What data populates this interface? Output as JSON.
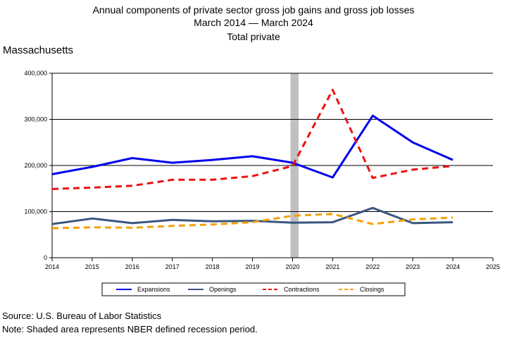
{
  "title_lines": [
    "Annual components of private sector gross job gains and gross job losses",
    "March 2014 — March 2024",
    "Total private"
  ],
  "state": "Massachusetts",
  "footer": {
    "source": "Source: U.S. Bureau of Labor Statistics",
    "note": "Note: Shaded area represents NBER defined recession period."
  },
  "chart_data": {
    "type": "line",
    "x": [
      2014,
      2015,
      2016,
      2017,
      2018,
      2019,
      2020,
      2021,
      2022,
      2023,
      2024
    ],
    "xlim": [
      2014,
      2025
    ],
    "x_ticks": [
      "2014",
      "2015",
      "2016",
      "2017",
      "2018",
      "2019",
      "2020",
      "2021",
      "2022",
      "2023",
      "2024",
      "2025"
    ],
    "ylim": [
      0,
      400000
    ],
    "y_ticks": [
      "0",
      "100,000",
      "200,000",
      "300,000",
      "400,000"
    ],
    "y_tick_values": [
      0,
      100000,
      200000,
      300000,
      400000
    ],
    "grid": "horizontal",
    "legend_position": "bottom",
    "recession_shading": {
      "start": 2020,
      "end": 2020.15,
      "color": "#c0c0c0"
    },
    "series": [
      {
        "name": "Expansions",
        "color": "#0000ee",
        "style": "solid",
        "values": [
          181000,
          197000,
          216000,
          206000,
          212000,
          220000,
          206000,
          174000,
          308000,
          250000,
          212000
        ]
      },
      {
        "name": "Openings",
        "color": "#3a5580",
        "style": "solid",
        "values": [
          73000,
          85000,
          75000,
          82000,
          79000,
          80000,
          76000,
          77000,
          108000,
          75000,
          77000
        ]
      },
      {
        "name": "Contractions",
        "color": "#ee1111",
        "style": "dashed",
        "values": [
          149000,
          152000,
          156000,
          169000,
          169000,
          177000,
          199000,
          364000,
          173000,
          191000,
          199000
        ]
      },
      {
        "name": "Closings",
        "color": "#f5a000",
        "style": "dashed",
        "values": [
          64000,
          66000,
          65000,
          69000,
          72000,
          77000,
          91000,
          95000,
          73000,
          83000,
          87000
        ]
      }
    ]
  }
}
